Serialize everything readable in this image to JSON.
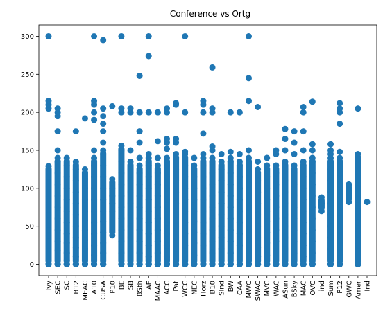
{
  "chart_data": {
    "type": "scatter",
    "title": "Conference vs Ortg",
    "xlabel": "",
    "ylabel": "",
    "ylim": [
      -15,
      315
    ],
    "yticks": [
      0,
      50,
      100,
      150,
      200,
      250,
      300
    ],
    "grid": false,
    "marker_color": "#1f77b4",
    "categories": [
      "Ivy",
      "SEC",
      "SC",
      "B12",
      "MEAC",
      "A10",
      "CUSA",
      "P10",
      "BE",
      "SB",
      "BSth",
      "AE",
      "MAAC",
      "ACC",
      "Pat",
      "WCC",
      "NEC",
      "Horz",
      "B10",
      "Slnd",
      "BW",
      "CAA",
      "MWC",
      "SWAC",
      "MVC",
      "WAC",
      "ASun",
      "BSky",
      "MAC",
      "OVC",
      "ind",
      "Sum",
      "P12",
      "GWC",
      "Amer",
      "Ind"
    ],
    "series": [
      {
        "points": [
          {
            "cat": "Ivy",
            "band": [
              0,
              129
            ],
            "y": [
              0,
              0,
              0,
              0,
              25,
              38,
              52,
              65,
              78,
              90,
              102,
              115,
              125,
              129,
              205,
              210,
              215,
              300
            ]
          },
          {
            "cat": "SEC",
            "band": [
              0,
              140
            ],
            "y": [
              0,
              0,
              0,
              0,
              18,
              30,
              45,
              60,
              75,
              90,
              105,
              120,
              135,
              140,
              150,
              175,
              195,
              200,
              205
            ]
          },
          {
            "cat": "SC",
            "band": [
              0,
              140
            ],
            "y": [
              0,
              0,
              0,
              0,
              5,
              15,
              28,
              40,
              55,
              70,
              85,
              100,
              115,
              130,
              140
            ]
          },
          {
            "cat": "B12",
            "band": [
              0,
              135
            ],
            "y": [
              0,
              0,
              0,
              0,
              10,
              22,
              35,
              50,
              65,
              80,
              95,
              110,
              125,
              135,
              175
            ]
          },
          {
            "cat": "MEAC",
            "band": [
              0,
              125
            ],
            "y": [
              0,
              0,
              0,
              0,
              20,
              32,
              45,
              58,
              70,
              85,
              100,
              112,
              125,
              192
            ]
          },
          {
            "cat": "A10",
            "band": [
              0,
              140
            ],
            "y": [
              0,
              0,
              0,
              0,
              12,
              25,
              40,
              55,
              70,
              85,
              100,
              115,
              130,
              140,
              150,
              190,
              200,
              210,
              215,
              300
            ]
          },
          {
            "cat": "CUSA",
            "band": [
              0,
              150
            ],
            "y": [
              0,
              0,
              0,
              0,
              15,
              28,
              42,
              56,
              70,
              85,
              100,
              115,
              130,
              145,
              150,
              160,
              175,
              185,
              195,
              205,
              295
            ]
          },
          {
            "cat": "P10",
            "band": [
              38,
              112
            ],
            "y": [
              38,
              70,
              80,
              90,
              100,
              112,
              208
            ]
          },
          {
            "cat": "BE",
            "band": [
              0,
              156
            ],
            "y": [
              0,
              0,
              0,
              0,
              15,
              30,
              45,
              60,
              75,
              90,
              105,
              120,
              135,
              150,
              156,
              200,
              205,
              300
            ]
          },
          {
            "cat": "SB",
            "band": [
              0,
              135
            ],
            "y": [
              0,
              0,
              0,
              0,
              20,
              35,
              50,
              65,
              80,
              95,
              110,
              125,
              135,
              150,
              200,
              205
            ]
          },
          {
            "cat": "BSth",
            "band": [
              0,
              130
            ],
            "y": [
              0,
              0,
              0,
              0,
              15,
              30,
              45,
              60,
              75,
              90,
              105,
              120,
              130,
              140,
              160,
              175,
              200,
              248
            ]
          },
          {
            "cat": "AE",
            "band": [
              0,
              140
            ],
            "y": [
              0,
              0,
              0,
              0,
              10,
              25,
              40,
              55,
              70,
              85,
              100,
              115,
              130,
              140,
              145,
              200,
              274,
              300
            ]
          },
          {
            "cat": "MAAC",
            "band": [
              0,
              130
            ],
            "y": [
              0,
              0,
              0,
              0,
              15,
              30,
              45,
              60,
              75,
              90,
              105,
              120,
              130,
              140,
              162,
              200
            ]
          },
          {
            "cat": "ACC",
            "band": [
              0,
              140
            ],
            "y": [
              0,
              0,
              0,
              0,
              10,
              25,
              40,
              55,
              70,
              85,
              100,
              115,
              130,
              140,
              152,
              160,
              165,
              200,
              205
            ]
          },
          {
            "cat": "Pat",
            "band": [
              0,
              145
            ],
            "y": [
              0,
              0,
              0,
              0,
              20,
              35,
              50,
              65,
              80,
              95,
              110,
              125,
              140,
              145,
              160,
              165,
              210,
              212
            ]
          },
          {
            "cat": "WCC",
            "band": [
              0,
              145
            ],
            "y": [
              0,
              0,
              0,
              0,
              25,
              40,
              55,
              70,
              85,
              100,
              115,
              130,
              145,
              148,
              200,
              300
            ]
          },
          {
            "cat": "NEC",
            "band": [
              0,
              130
            ],
            "y": [
              0,
              0,
              0,
              0,
              12,
              28,
              42,
              56,
              70,
              85,
              100,
              115,
              130,
              140
            ]
          },
          {
            "cat": "Horz",
            "band": [
              0,
              140
            ],
            "y": [
              0,
              0,
              0,
              0,
              25,
              40,
              55,
              70,
              85,
              100,
              115,
              130,
              140,
              145,
              172,
              200,
              210,
              215
            ]
          },
          {
            "cat": "B10",
            "band": [
              0,
              140
            ],
            "y": [
              0,
              0,
              0,
              0,
              15,
              30,
              45,
              60,
              75,
              90,
              105,
              120,
              135,
              140,
              150,
              155,
              200,
              205,
              259
            ]
          },
          {
            "cat": "Slnd",
            "band": [
              0,
              135
            ],
            "y": [
              0,
              0,
              0,
              0,
              20,
              35,
              50,
              65,
              80,
              95,
              110,
              125,
              135,
              145
            ]
          },
          {
            "cat": "BW",
            "band": [
              0,
              140
            ],
            "y": [
              0,
              0,
              0,
              0,
              15,
              30,
              45,
              60,
              75,
              90,
              105,
              120,
              135,
              140,
              148,
              200
            ]
          },
          {
            "cat": "CAA",
            "band": [
              0,
              135
            ],
            "y": [
              0,
              0,
              0,
              0,
              25,
              40,
              55,
              70,
              85,
              100,
              115,
              130,
              135,
              145,
              200
            ]
          },
          {
            "cat": "MWC",
            "band": [
              0,
              140
            ],
            "y": [
              0,
              0,
              0,
              0,
              18,
              32,
              46,
              60,
              75,
              90,
              105,
              120,
              135,
              140,
              150,
              215,
              245,
              300
            ]
          },
          {
            "cat": "SWAC",
            "band": [
              0,
              125
            ],
            "y": [
              0,
              0,
              0,
              0,
              10,
              22,
              35,
              50,
              65,
              80,
              95,
              110,
              125,
              135,
              207
            ]
          },
          {
            "cat": "MVC",
            "band": [
              0,
              130
            ],
            "y": [
              0,
              0,
              0,
              0,
              12,
              28,
              42,
              56,
              70,
              85,
              100,
              115,
              130,
              140
            ]
          },
          {
            "cat": "WAC",
            "band": [
              0,
              130
            ],
            "y": [
              0,
              0,
              0,
              0,
              30,
              45,
              60,
              75,
              90,
              105,
              120,
              130,
              145,
              150
            ]
          },
          {
            "cat": "ASun",
            "band": [
              0,
              135
            ],
            "y": [
              0,
              0,
              0,
              0,
              20,
              35,
              50,
              65,
              80,
              95,
              110,
              125,
              135,
              150,
              165,
              178
            ]
          },
          {
            "cat": "BSky",
            "band": [
              0,
              130
            ],
            "y": [
              0,
              0,
              0,
              0,
              15,
              30,
              45,
              60,
              75,
              90,
              105,
              120,
              130,
              145,
              160,
              175
            ]
          },
          {
            "cat": "MAC",
            "band": [
              0,
              135
            ],
            "y": [
              0,
              0,
              0,
              0,
              10,
              25,
              40,
              55,
              70,
              85,
              100,
              115,
              130,
              135,
              150,
              175,
              200,
              207
            ]
          },
          {
            "cat": "OVC",
            "band": [
              0,
              140
            ],
            "y": [
              0,
              0,
              0,
              0,
              15,
              30,
              45,
              60,
              75,
              90,
              105,
              120,
              135,
              140,
              150,
              158,
              214
            ]
          },
          {
            "cat": "ind",
            "band": [
              70,
              88
            ],
            "y": [
              70,
              80,
              88
            ]
          },
          {
            "cat": "Sum",
            "band": [
              0,
              140
            ],
            "y": [
              0,
              0,
              0,
              0,
              20,
              35,
              50,
              65,
              80,
              95,
              110,
              125,
              140,
              145,
              150,
              158
            ]
          },
          {
            "cat": "P12",
            "band": [
              0,
              140
            ],
            "y": [
              0,
              0,
              0,
              0,
              15,
              30,
              45,
              60,
              75,
              90,
              105,
              120,
              135,
              140,
              148,
              185,
              200,
              205,
              212
            ]
          },
          {
            "cat": "GWC",
            "band": [
              82,
              105
            ],
            "y": [
              82,
              95,
              100,
              105
            ]
          },
          {
            "cat": "Amer",
            "band": [
              0,
              145
            ],
            "y": [
              0,
              0,
              0,
              0,
              10,
              25,
              40,
              55,
              70,
              85,
              100,
              115,
              130,
              145,
              205
            ]
          },
          {
            "cat": "Ind",
            "band": [
              82,
              82
            ],
            "y": [
              82
            ]
          }
        ]
      }
    ]
  }
}
